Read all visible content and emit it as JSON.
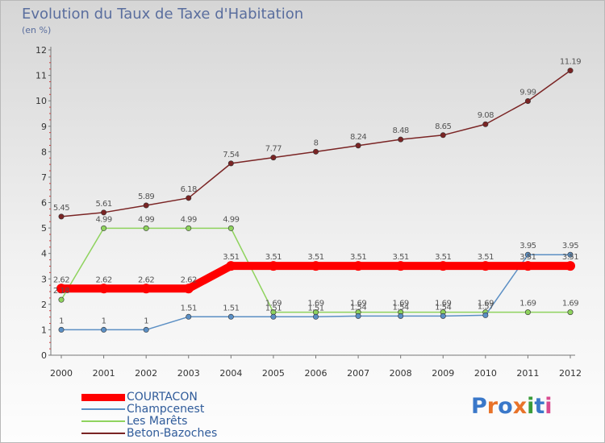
{
  "title": "Evolution du Taux de Taxe d'Habitation",
  "subtitle": "(en %)",
  "logo_text": "Proxiti",
  "chart_data": {
    "type": "line",
    "x": [
      "2000",
      "2001",
      "2002",
      "2003",
      "2004",
      "2005",
      "2006",
      "2007",
      "2008",
      "2009",
      "2010",
      "2011",
      "2012"
    ],
    "ylim": [
      0,
      12
    ],
    "yticks": [
      0,
      1,
      2,
      3,
      4,
      5,
      6,
      7,
      8,
      9,
      10,
      11,
      12
    ],
    "grid": false,
    "legend_position": "bottom-left",
    "series": [
      {
        "name": "COURTACON",
        "color": "#ff0000",
        "values": [
          2.62,
          2.62,
          2.62,
          2.62,
          3.51,
          3.51,
          3.51,
          3.51,
          3.51,
          3.51,
          3.51,
          3.51,
          3.51
        ],
        "labels": [
          "2.62",
          "2.62",
          "2.62",
          "2.62",
          "3.51",
          "3.51",
          "3.51",
          "3.51",
          "3.51",
          "3.51",
          "3.51",
          "3.51",
          "3.51"
        ]
      },
      {
        "name": "Champcenest",
        "color": "#5b8fc4",
        "values": [
          1,
          1,
          1,
          1.51,
          1.51,
          1.51,
          1.51,
          1.54,
          1.54,
          1.54,
          1.57,
          3.95,
          3.95
        ],
        "labels": [
          "1",
          "1",
          "1",
          "1.51",
          "1.51",
          "1.51",
          "1.51",
          "1.54",
          "1.54",
          "1.54",
          "1.57",
          "3.95",
          "3.95"
        ]
      },
      {
        "name": "Les Marêts",
        "color": "#8fd35e",
        "values": [
          2.18,
          4.99,
          4.99,
          4.99,
          4.99,
          1.69,
          1.69,
          1.69,
          1.69,
          1.69,
          1.69,
          1.69,
          1.69
        ],
        "labels": [
          "2.18",
          "4.99",
          "4.99",
          "4.99",
          "4.99",
          "1.69",
          "1.69",
          "1.69",
          "1.69",
          "1.69",
          "1.69",
          "1.69",
          "1.69"
        ]
      },
      {
        "name": "Beton-Bazoches",
        "color": "#7a2424",
        "values": [
          5.45,
          5.61,
          5.89,
          6.18,
          7.54,
          7.77,
          8,
          8.24,
          8.48,
          8.65,
          9.08,
          9.99,
          11.19
        ],
        "labels": [
          "5.45",
          "5.61",
          "5.89",
          "6.18",
          "7.54",
          "7.77",
          "8",
          "8.24",
          "8.48",
          "8.65",
          "9.08",
          "9.99",
          "11.19"
        ]
      }
    ]
  }
}
